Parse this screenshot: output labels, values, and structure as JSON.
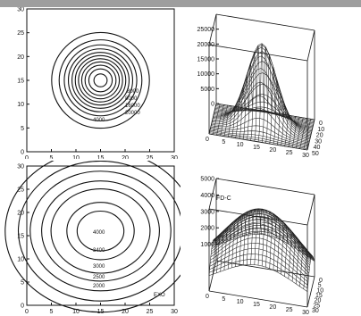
{
  "chart_data": [
    {
      "type": "contour",
      "panel": "top-left",
      "x_ticks": [
        "0",
        "5",
        "10",
        "15",
        "20",
        "25",
        "30"
      ],
      "y_ticks": [
        "0",
        "5",
        "10",
        "15",
        "20",
        "25",
        "30"
      ],
      "xlim": [
        0,
        30
      ],
      "ylim": [
        0,
        30
      ],
      "center": [
        15,
        15
      ],
      "contour_labels": [
        "8000",
        "8000",
        "16000",
        "20000",
        "4000"
      ],
      "levels": [
        4000,
        8000,
        12000,
        16000,
        20000,
        24000,
        28000,
        32000,
        36000,
        40000,
        44000
      ]
    },
    {
      "type": "surface",
      "panel": "top-right",
      "z_ticks": [
        "0",
        "5000",
        "10000",
        "15000",
        "20000",
        "25000"
      ],
      "x_ticks": [
        "0",
        "5",
        "10",
        "15",
        "20",
        "25",
        "30"
      ],
      "y_ticks": [
        "0",
        "10",
        "20",
        "30",
        "40",
        "50"
      ],
      "peak": 28000,
      "spread": 4.5
    },
    {
      "type": "contour",
      "panel": "bottom-left",
      "x_ticks": [
        "0",
        "5",
        "10",
        "15",
        "20",
        "25",
        "30"
      ],
      "y_ticks": [
        "0",
        "5",
        "10",
        "15",
        "20",
        "25",
        "30"
      ],
      "xlim": [
        0,
        30
      ],
      "ylim": [
        0,
        30
      ],
      "center": [
        15,
        16
      ],
      "contour_labels": [
        "4000",
        "3400",
        "3000",
        "2500",
        "2000",
        "EXO"
      ],
      "levels": [
        1500,
        2000,
        2500,
        3000,
        3400,
        4000,
        4300
      ]
    },
    {
      "type": "surface",
      "panel": "bottom-right",
      "label": "FD-C",
      "z_ticks": [
        "1000",
        "2000",
        "3000",
        "4000",
        "5000"
      ],
      "x_ticks": [
        "0",
        "5",
        "10",
        "15",
        "20",
        "25",
        "30"
      ],
      "y_ticks": [
        "0",
        "5",
        "10",
        "15",
        "20",
        "25",
        "30"
      ],
      "peak": 4500,
      "spread": 12
    }
  ]
}
